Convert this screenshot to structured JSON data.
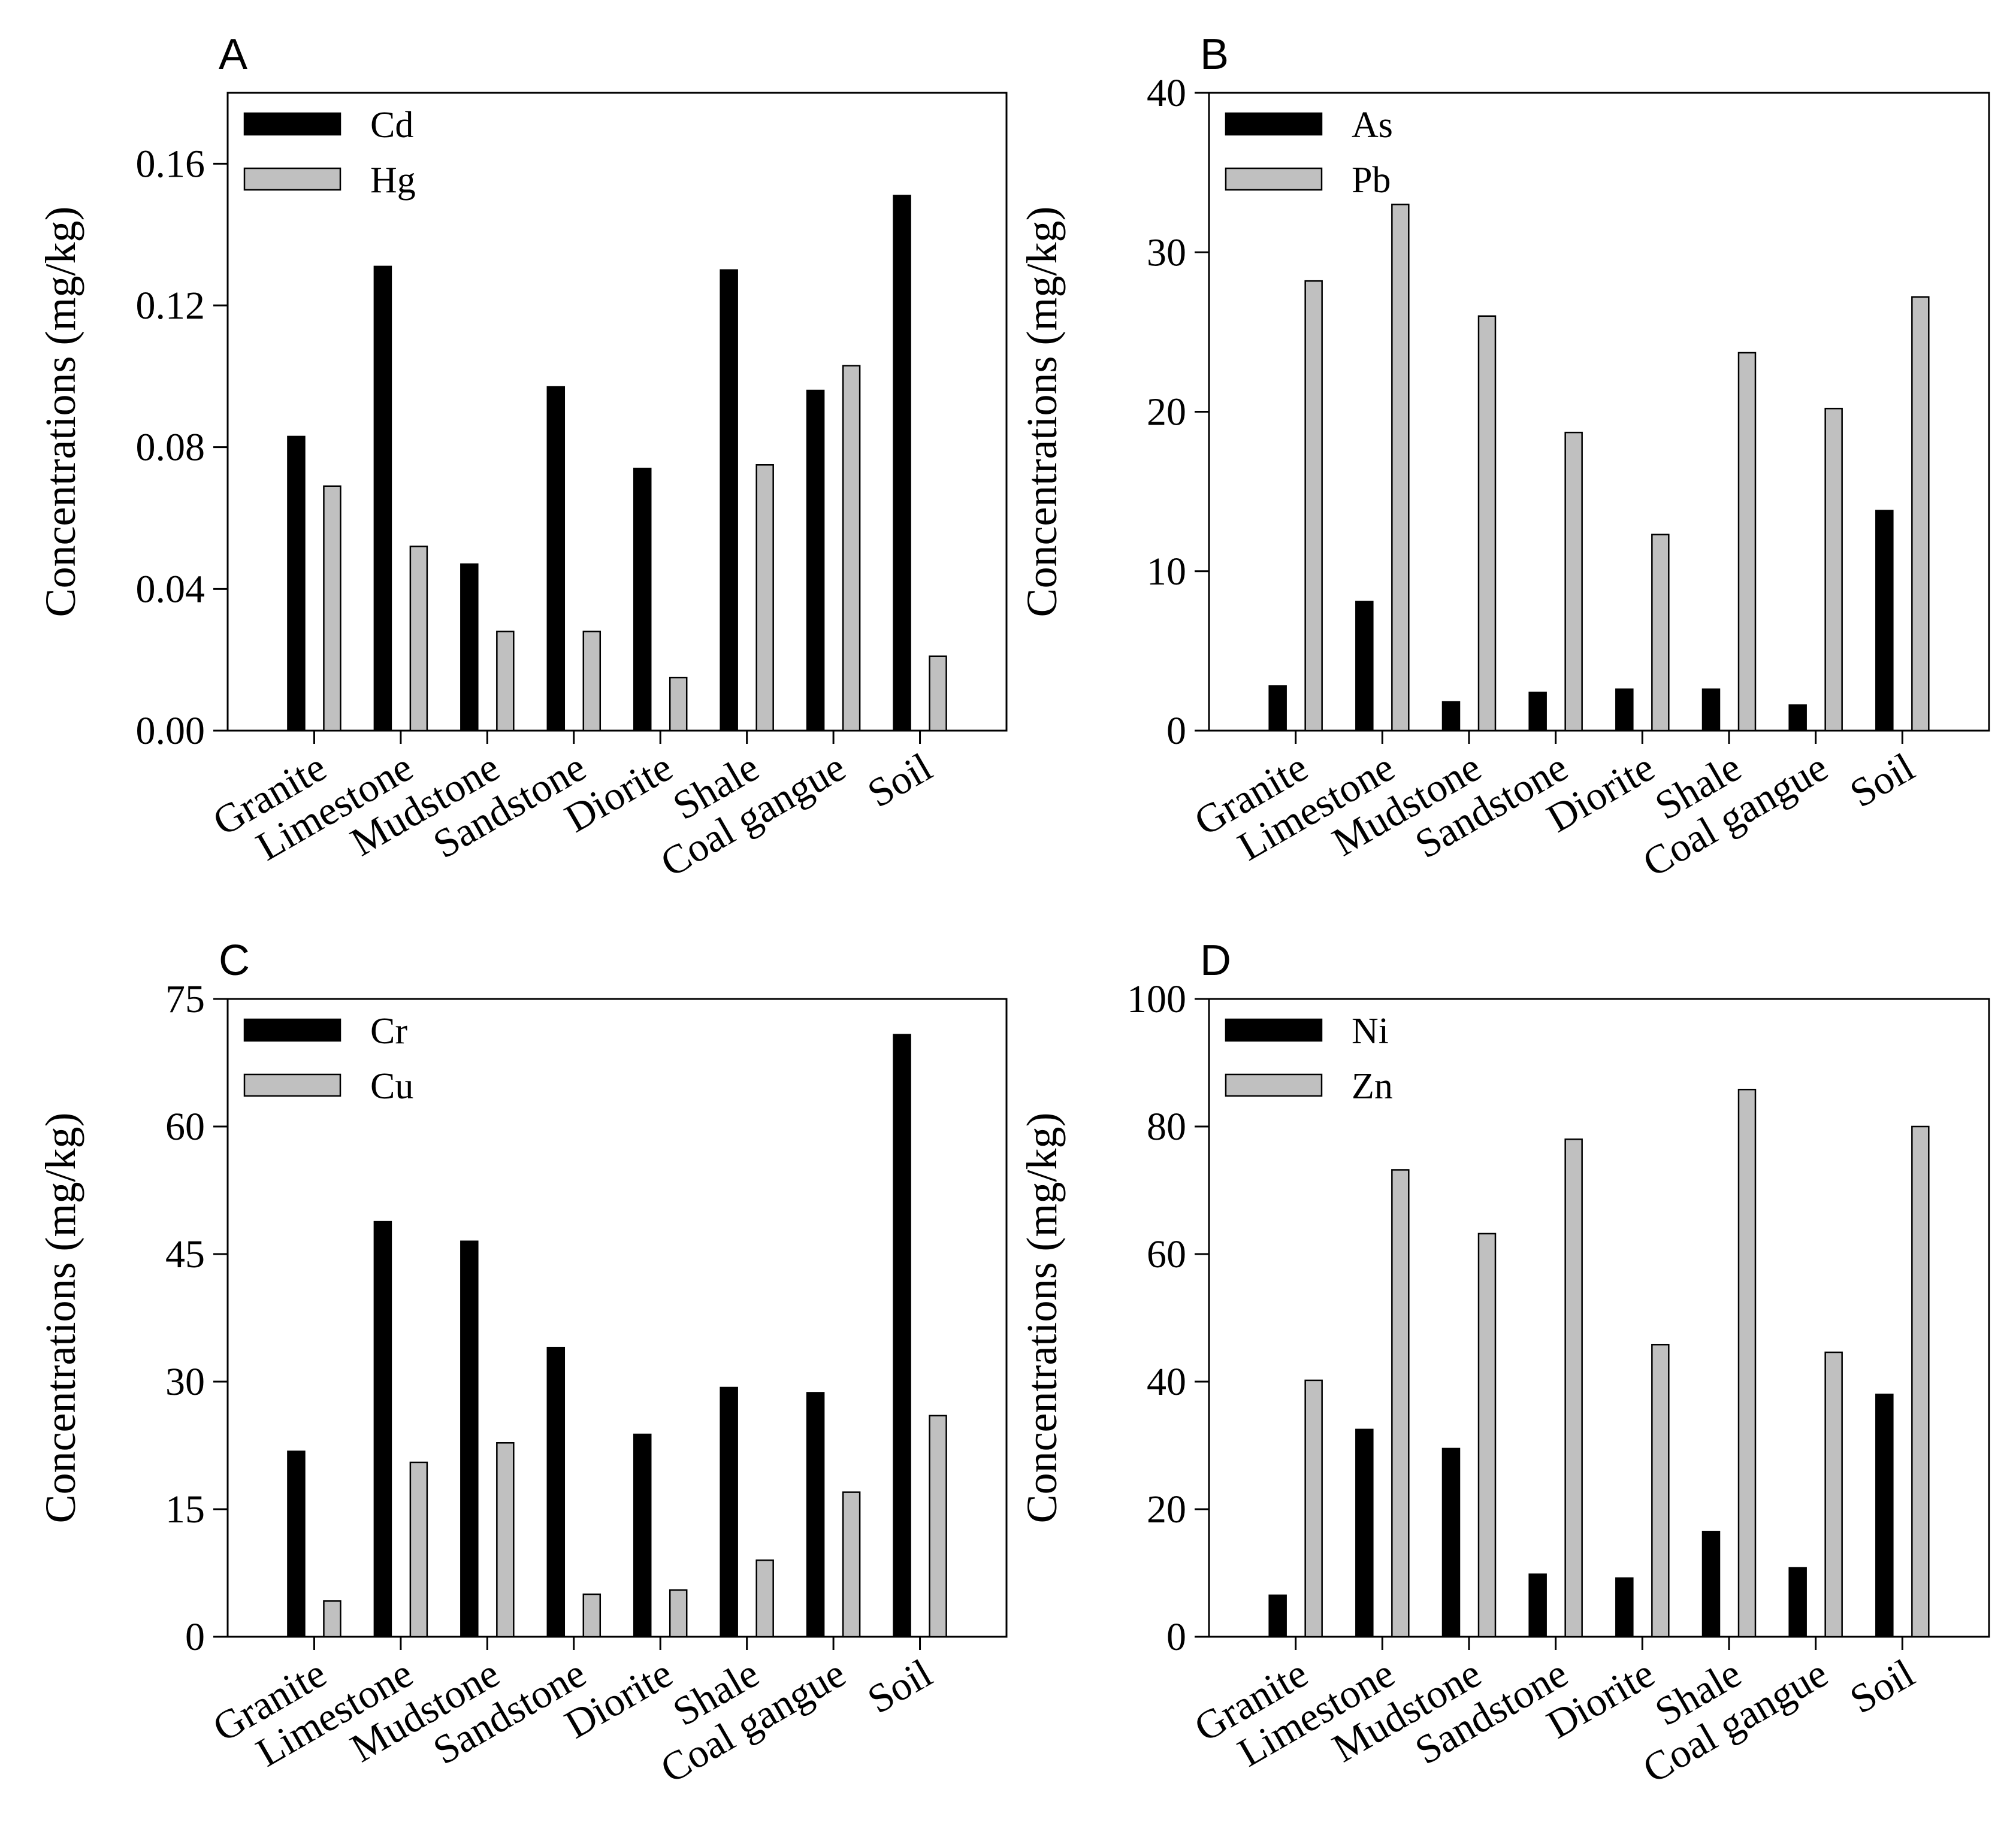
{
  "figure": {
    "chart_data": [
      {
        "panel_label": "A",
        "type": "bar",
        "title": "",
        "xlabel": "",
        "ylabel": "Concentrations (mg/kg)",
        "categories": [
          "Granite",
          "Limestone",
          "Mudstone",
          "Sandstone",
          "Diorite",
          "Shale",
          "Coal gangue",
          "Soil"
        ],
        "series": [
          {
            "name": "Cd",
            "color": "#000000",
            "values": [
              0.083,
              0.131,
              0.047,
              0.097,
              0.074,
              0.13,
              0.096,
              0.151
            ]
          },
          {
            "name": "Hg",
            "color": "#c0c0c0",
            "values": [
              0.069,
              0.052,
              0.028,
              0.028,
              0.015,
              0.075,
              0.103,
              0.021
            ]
          }
        ],
        "ylim": [
          0,
          0.18
        ],
        "yticks": [
          0,
          0.04,
          0.08,
          0.12,
          0.16
        ],
        "ytick_labels": [
          "0.00",
          "0.04",
          "0.08",
          "0.12",
          "0.16"
        ],
        "legend_position": "top-left"
      },
      {
        "panel_label": "B",
        "type": "bar",
        "title": "",
        "xlabel": "",
        "ylabel": "Concentrations (mg/kg)",
        "categories": [
          "Granite",
          "Limestone",
          "Mudstone",
          "Sandstone",
          "Diorite",
          "Shale",
          "Coal gangue",
          "Soil"
        ],
        "series": [
          {
            "name": "As",
            "color": "#000000",
            "values": [
              2.8,
              8.1,
              1.8,
              2.4,
              2.6,
              2.6,
              1.6,
              13.8
            ]
          },
          {
            "name": "Pb",
            "color": "#c0c0c0",
            "values": [
              28.2,
              33.0,
              26.0,
              18.7,
              12.3,
              23.7,
              20.2,
              27.2
            ]
          }
        ],
        "ylim": [
          0,
          40
        ],
        "yticks": [
          0,
          10,
          20,
          30,
          40
        ],
        "ytick_labels": [
          "0",
          "10",
          "20",
          "30",
          "40"
        ],
        "legend_position": "top-left"
      },
      {
        "panel_label": "C",
        "type": "bar",
        "title": "",
        "xlabel": "",
        "ylabel": "Concentrations (mg/kg)",
        "categories": [
          "Granite",
          "Limestone",
          "Mudstone",
          "Sandstone",
          "Diorite",
          "Shale",
          "Coal gangue",
          "Soil"
        ],
        "series": [
          {
            "name": "Cr",
            "color": "#000000",
            "values": [
              21.8,
              48.8,
              46.5,
              34.0,
              23.8,
              29.3,
              28.7,
              70.8
            ]
          },
          {
            "name": "Cu",
            "color": "#c0c0c0",
            "values": [
              4.2,
              20.5,
              22.8,
              5.0,
              5.5,
              9.0,
              17.0,
              26.0
            ]
          }
        ],
        "ylim": [
          0,
          75
        ],
        "yticks": [
          0,
          15,
          30,
          45,
          60,
          75
        ],
        "ytick_labels": [
          "0",
          "15",
          "30",
          "45",
          "60",
          "75"
        ],
        "legend_position": "top-left"
      },
      {
        "panel_label": "D",
        "type": "bar",
        "title": "",
        "xlabel": "",
        "ylabel": "Concentrations (mg/kg)",
        "categories": [
          "Granite",
          "Limestone",
          "Mudstone",
          "Sandstone",
          "Diorite",
          "Shale",
          "Coal gangue",
          "Soil"
        ],
        "series": [
          {
            "name": "Ni",
            "color": "#000000",
            "values": [
              6.5,
              32.5,
              29.5,
              9.8,
              9.2,
              16.5,
              10.8,
              38.0
            ]
          },
          {
            "name": "Zn",
            "color": "#c0c0c0",
            "values": [
              40.2,
              73.2,
              63.2,
              78.0,
              45.8,
              85.8,
              44.6,
              80.0
            ]
          }
        ],
        "ylim": [
          0,
          100
        ],
        "yticks": [
          0,
          20,
          40,
          60,
          80,
          100
        ],
        "ytick_labels": [
          "0",
          "20",
          "40",
          "60",
          "80",
          "100"
        ],
        "legend_position": "top-left"
      }
    ]
  }
}
